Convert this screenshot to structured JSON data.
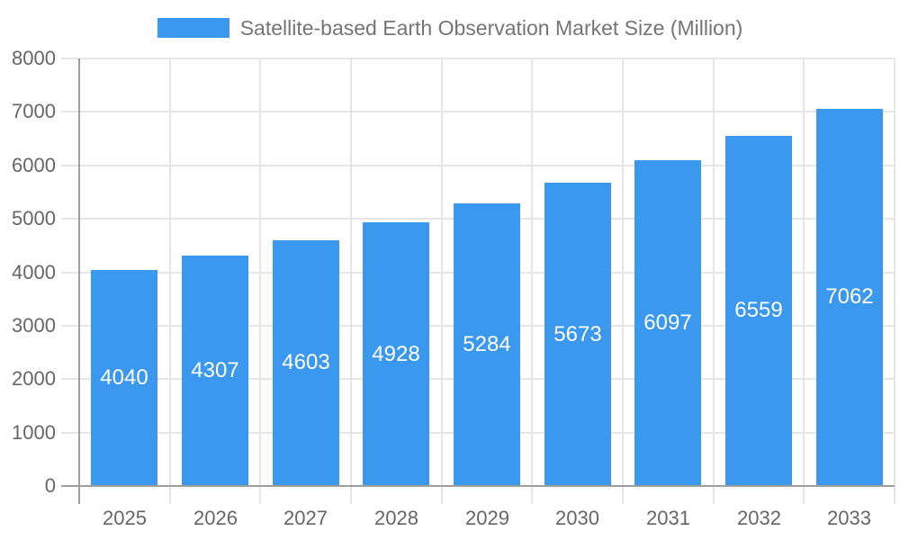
{
  "chart_data": {
    "type": "bar",
    "title": "Satellite-based Earth Observation Market Size (Million)",
    "legend_position": "top",
    "categories": [
      "2025",
      "2026",
      "2027",
      "2028",
      "2029",
      "2030",
      "2031",
      "2032",
      "2033"
    ],
    "series": [
      {
        "name": "Satellite-based Earth Observation Market Size (Million)",
        "values": [
          4040,
          4307,
          4603,
          4928,
          5284,
          5673,
          6097,
          6559,
          7062
        ]
      }
    ],
    "xlabel": "",
    "ylabel": "",
    "ylim": [
      0,
      8000
    ],
    "yticks": [
      0,
      1000,
      2000,
      3000,
      4000,
      5000,
      6000,
      7000,
      8000
    ],
    "grid": true,
    "value_labels": "inside-center",
    "colors": {
      "bar": "#3a98ef",
      "grid": "#e6e6e6",
      "axis": "#9e9e9e",
      "tick_label": "#666666",
      "legend_text": "#757575",
      "value_label": "#ffffff",
      "background": "#ffffff"
    }
  }
}
